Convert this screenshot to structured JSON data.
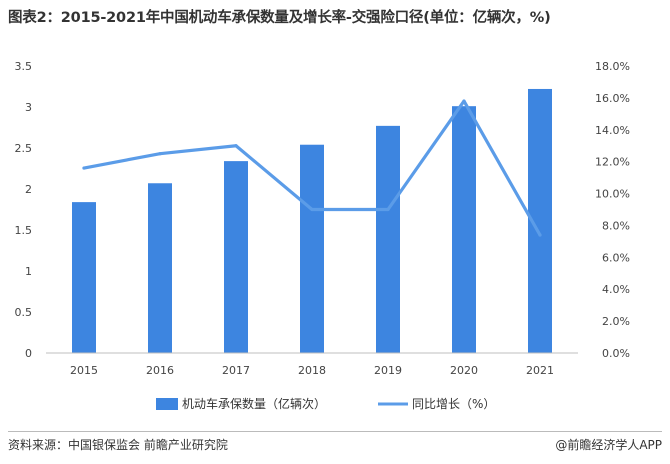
{
  "title": "图表2：2015-2021年中国机动车承保数量及增长率-交强险口径(单位：亿辆次，%)",
  "footer": {
    "source": "资料来源：中国银保监会 前瞻产业研究院",
    "brand": "@前瞻经济学人APP"
  },
  "colors": {
    "bar": "#3d85e0",
    "line": "#5b9ce8"
  },
  "chart_data": {
    "type": "bar",
    "categories": [
      "2015",
      "2016",
      "2017",
      "2018",
      "2019",
      "2020",
      "2021"
    ],
    "series": [
      {
        "name": "机动车承保数量（亿辆次）",
        "type": "bar",
        "axis": "left",
        "values": [
          1.84,
          2.07,
          2.34,
          2.54,
          2.77,
          3.01,
          3.22
        ]
      },
      {
        "name": "同比增长（%）",
        "type": "line",
        "axis": "right",
        "values": [
          11.6,
          12.5,
          13.0,
          9.0,
          9.0,
          15.8,
          7.4
        ]
      }
    ],
    "y_left": {
      "lim": [
        0,
        3.5
      ],
      "ticks": [
        "0",
        "0.5",
        "1",
        "1.5",
        "2",
        "2.5",
        "3",
        "3.5"
      ]
    },
    "y_right": {
      "lim": [
        0,
        18
      ],
      "ticks": [
        "0.0%",
        "2.0%",
        "4.0%",
        "6.0%",
        "8.0%",
        "10.0%",
        "12.0%",
        "14.0%",
        "16.0%",
        "18.0%"
      ]
    },
    "grid": false,
    "legend": "bottom"
  }
}
